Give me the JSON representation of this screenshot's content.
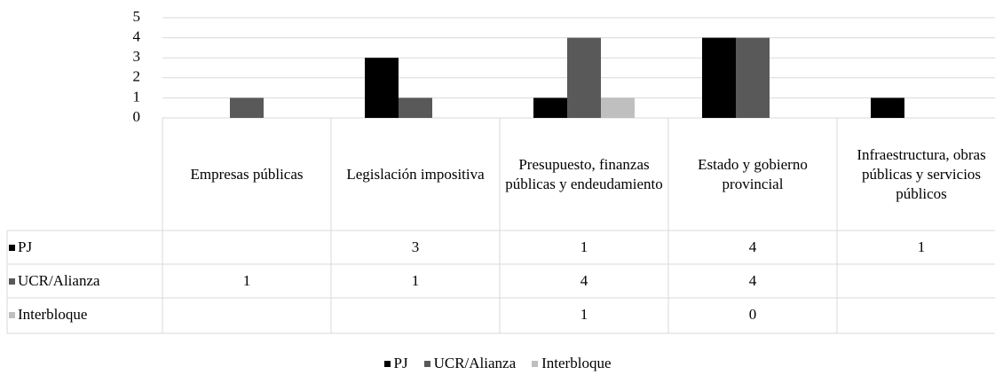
{
  "chart_data": {
    "type": "bar",
    "categories": [
      "Empresas públicas",
      "Legislación impositiva",
      "Presupuesto, finanzas públicas y endeudamiento",
      "Estado y gobierno provincial",
      "Infraestructura, obras públicas y servicios públicos"
    ],
    "series": [
      {
        "name": "PJ",
        "color": "#000000",
        "values": [
          null,
          3,
          1,
          4,
          1
        ]
      },
      {
        "name": "UCR/Alianza",
        "color": "#595959",
        "values": [
          1,
          1,
          4,
          4,
          null
        ]
      },
      {
        "name": "Interbloque",
        "color": "#bfbfbf",
        "values": [
          null,
          null,
          1,
          0,
          null
        ]
      }
    ],
    "ylim": [
      0,
      5
    ],
    "yticks": [
      0,
      1,
      2,
      3,
      4,
      5
    ],
    "grid": true,
    "legend": "bottom"
  }
}
